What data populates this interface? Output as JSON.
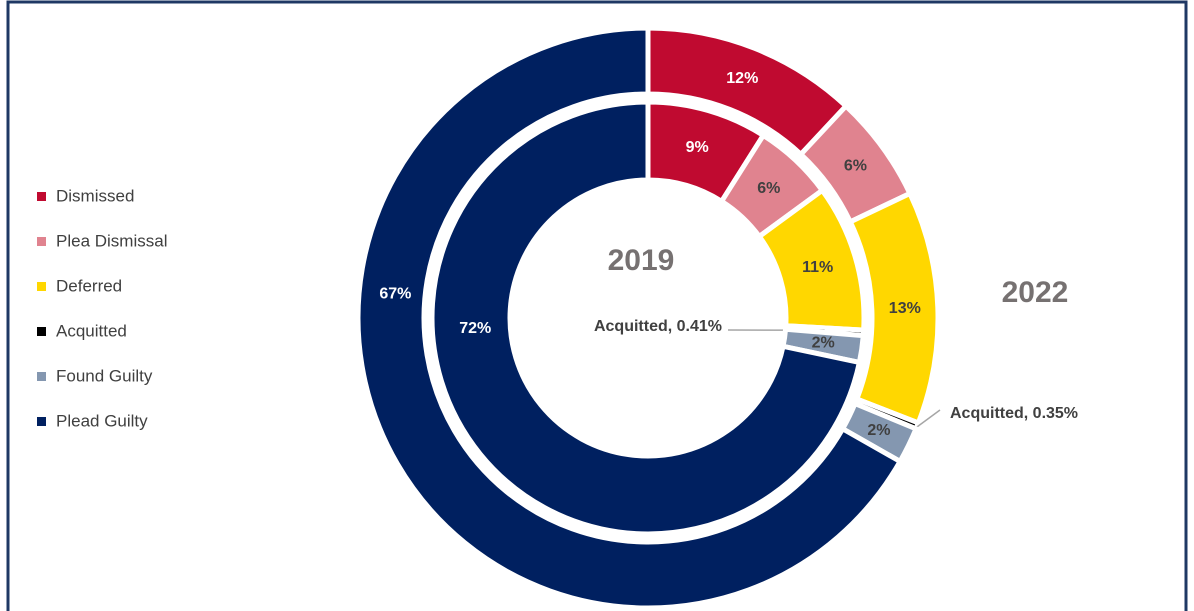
{
  "chart_data": {
    "type": "donut",
    "categories": [
      "Dismissed",
      "Plea Dismissal",
      "Deferred",
      "Acquitted",
      "Found Guilty",
      "Plead Guilty"
    ],
    "colors": [
      "#c00a30",
      "#e0838f",
      "#ffd700",
      "#000000",
      "#8497b0",
      "#002060"
    ],
    "series": [
      {
        "name": "2019",
        "values": [
          9,
          6,
          11,
          0.41,
          2,
          72
        ],
        "value_labels": [
          "9%",
          "6%",
          "11%",
          "Acquitted, 0.41%",
          "2%",
          "72%"
        ]
      },
      {
        "name": "2022",
        "values": [
          12,
          6,
          13,
          0.35,
          2,
          67
        ],
        "value_labels": [
          "12%",
          "6%",
          "13%",
          "Acquitted, 0.35%",
          "2%",
          "67%"
        ]
      }
    ],
    "legend": "left"
  }
}
